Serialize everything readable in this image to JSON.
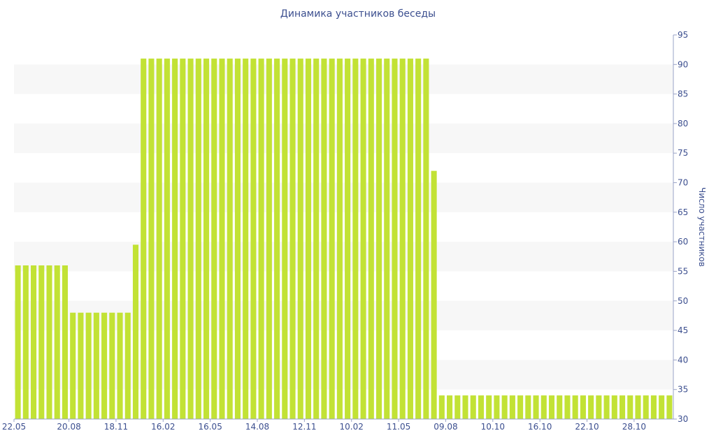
{
  "chart_data": {
    "type": "bar",
    "title": "Динамика участников беседы",
    "xlabel": "",
    "ylabel": "Число участников",
    "ylim": [
      30,
      95
    ],
    "yticks": [
      30,
      35,
      40,
      45,
      50,
      55,
      60,
      65,
      70,
      75,
      80,
      85,
      90,
      95
    ],
    "y_axis_side": "right",
    "grid": "alternating horizontal bands",
    "bar_color": "#c2e235",
    "band_color": "#f7f7f7",
    "text_color": "#3c4f8f",
    "x_tick_labels": [
      {
        "label": "22.05",
        "index": 0
      },
      {
        "label": "20.08",
        "index": 6.5
      },
      {
        "label": "18.11",
        "index": 12.5
      },
      {
        "label": "16.02",
        "index": 18.5
      },
      {
        "label": "16.05",
        "index": 24.5
      },
      {
        "label": "14.08",
        "index": 30.5
      },
      {
        "label": "12.11",
        "index": 36.5
      },
      {
        "label": "10.02",
        "index": 42.5
      },
      {
        "label": "11.05",
        "index": 48.5
      },
      {
        "label": "09.08",
        "index": 54.5
      },
      {
        "label": "10.10",
        "index": 60.5
      },
      {
        "label": "16.10",
        "index": 66.5
      },
      {
        "label": "22.10",
        "index": 72.5
      },
      {
        "label": "28.10",
        "index": 78.5
      }
    ],
    "values": [
      56,
      56,
      56,
      56,
      56,
      56,
      56,
      48,
      48,
      48,
      48,
      48,
      48,
      48,
      48,
      59.5,
      91,
      91,
      91,
      91,
      91,
      91,
      91,
      91,
      91,
      91,
      91,
      91,
      91,
      91,
      91,
      91,
      91,
      91,
      91,
      91,
      91,
      91,
      91,
      91,
      91,
      91,
      91,
      91,
      91,
      91,
      91,
      91,
      91,
      91,
      91,
      91,
      91,
      72,
      34,
      34,
      34,
      34,
      34,
      34,
      34,
      34,
      34,
      34,
      34,
      34,
      34,
      34,
      34,
      34,
      34,
      34,
      34,
      34,
      34,
      34,
      34,
      34,
      34,
      34,
      34,
      34,
      34,
      34
    ]
  }
}
